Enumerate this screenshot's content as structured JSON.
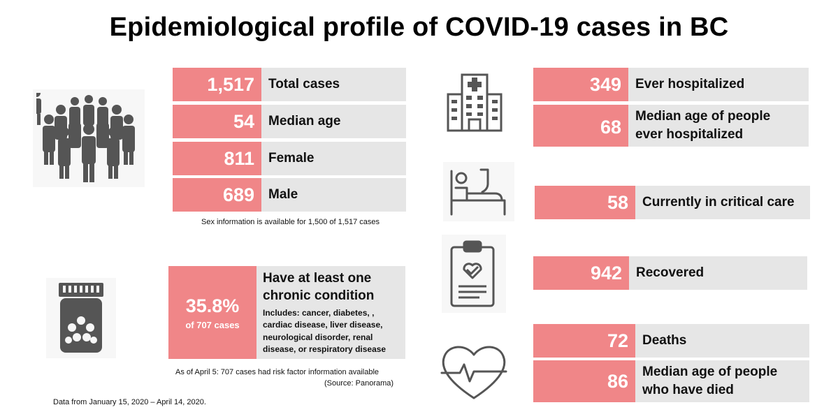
{
  "title": "Epidemiological profile of COVID-19 cases in BC",
  "left_stats": [
    {
      "value": "1,517",
      "label": "Total cases"
    },
    {
      "value": "54",
      "label": "Median age"
    },
    {
      "value": "811",
      "label": "Female"
    },
    {
      "value": "689",
      "label": "Male"
    }
  ],
  "sex_note": "Sex information is available for 1,500 of 1,517 cases",
  "chronic": {
    "value": "35.8%",
    "sub": "of 707 cases",
    "heading_line1": "Have at least one",
    "heading_line2": "chronic condition",
    "includes": [
      "Includes: cancer, diabetes, ,",
      "cardiac disease, liver disease,",
      "neurological disorder, renal",
      "disease, or respiratory disease"
    ]
  },
  "risk_note": {
    "line1": "As of April 5: 707 cases had risk factor information available",
    "line2": "(Source: Panorama)"
  },
  "data_note": "Data from January 15, 2020 – April 14, 2020.",
  "hospital": {
    "ever_value": "349",
    "ever_label": "Ever hospitalized",
    "median_value": "68",
    "median_label_line1": "Median age of people",
    "median_label_line2": "ever hospitalized"
  },
  "critical": {
    "value": "58",
    "label": "Currently in critical care"
  },
  "recovered": {
    "value": "942",
    "label": "Recovered"
  },
  "deaths": {
    "value": "72",
    "label": "Deaths",
    "median_value": "86",
    "median_label_line1": "Median age of people",
    "median_label_line2": "who have died"
  },
  "colors": {
    "accent": "#f08688",
    "label_bg": "#e6e6e6",
    "icon": "#555555"
  },
  "icons": [
    "crowd-icon",
    "pill-bottle-icon",
    "hospital-building-icon",
    "hospital-bed-icon",
    "clipboard-heart-icon",
    "heartbeat-icon"
  ]
}
